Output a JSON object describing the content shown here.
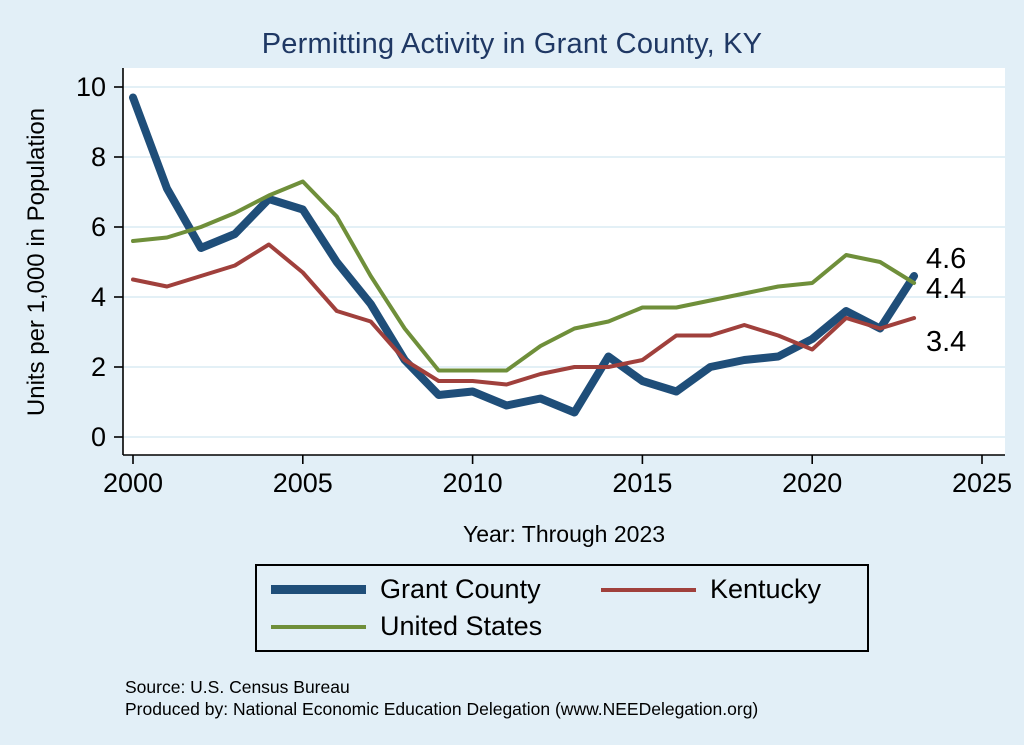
{
  "page": {
    "background": "#e2eff7"
  },
  "chart_data": {
    "type": "line",
    "title": "Permitting Activity in Grant County, KY",
    "title_color": "#1f3864",
    "xlabel": "Year: Through 2023",
    "ylabel": "Units per 1,000 in Population",
    "xlim": [
      2000,
      2025
    ],
    "ylim": [
      0,
      10
    ],
    "xticks": [
      2000,
      2005,
      2010,
      2015,
      2020,
      2025
    ],
    "yticks": [
      0,
      2,
      4,
      6,
      8,
      10
    ],
    "grid": true,
    "grid_color": "#d2e6f1",
    "legend_position": "bottom",
    "x": [
      2000,
      2001,
      2002,
      2003,
      2004,
      2005,
      2006,
      2007,
      2008,
      2009,
      2010,
      2011,
      2012,
      2013,
      2014,
      2015,
      2016,
      2017,
      2018,
      2019,
      2020,
      2021,
      2022,
      2023
    ],
    "series": [
      {
        "name": "Grant County",
        "color": "#1f4e79",
        "width": 8,
        "values": [
          9.7,
          7.1,
          5.4,
          5.8,
          6.8,
          6.5,
          5.0,
          3.8,
          2.2,
          1.2,
          1.3,
          0.9,
          1.1,
          0.7,
          2.3,
          1.6,
          1.3,
          2.0,
          2.2,
          2.3,
          2.8,
          3.6,
          3.1,
          4.6
        ]
      },
      {
        "name": "Kentucky",
        "color": "#a0403c",
        "width": 4,
        "values": [
          4.5,
          4.3,
          4.6,
          4.9,
          5.5,
          4.7,
          3.6,
          3.3,
          2.2,
          1.6,
          1.6,
          1.5,
          1.8,
          2.0,
          2.0,
          2.2,
          2.9,
          2.9,
          3.2,
          2.9,
          2.5,
          3.4,
          3.1,
          3.4
        ]
      },
      {
        "name": "United States",
        "color": "#6f8f3a",
        "width": 4,
        "values": [
          5.6,
          5.7,
          6.0,
          6.4,
          6.9,
          7.3,
          6.3,
          4.6,
          3.1,
          1.9,
          1.9,
          1.9,
          2.6,
          3.1,
          3.3,
          3.7,
          3.7,
          3.9,
          4.1,
          4.3,
          4.4,
          5.2,
          5.0,
          4.4
        ]
      }
    ],
    "end_labels": [
      {
        "text": "4.6",
        "value": 4.6,
        "dy": -8
      },
      {
        "text": "4.4",
        "value": 4.4,
        "dy": 15
      },
      {
        "text": "3.4",
        "value": 3.4,
        "dy": 33
      }
    ]
  },
  "footer": {
    "source": "Source: U.S. Census Bureau",
    "produced_by": "Produced by: National Economic Education Delegation (www.NEEDelegation.org)"
  }
}
